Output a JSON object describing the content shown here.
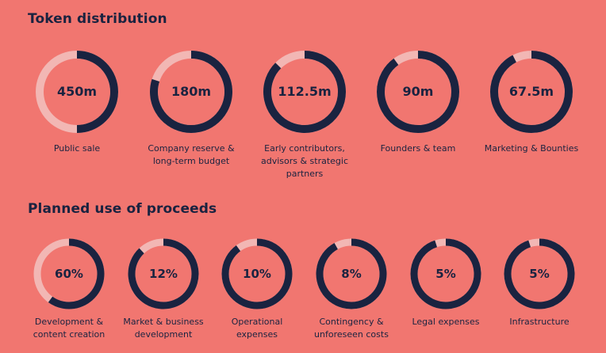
{
  "sections": [
    {
      "title": "Token distribution"
    },
    {
      "title": "Planned use of proceeds"
    }
  ],
  "colors": {
    "background": "#f17670",
    "fill": "#1a2340",
    "track": "#f2b7b4",
    "text": "#1a2340"
  },
  "chart_data": [
    {
      "type": "pie",
      "title": "Token distribution",
      "categories": [
        "Public sale",
        "Company reserve & long-term budget",
        "Early contributors, advisors & strategic partners",
        "Founders & team",
        "Marketing & Bounties"
      ],
      "labels": [
        "450m",
        "180m",
        "112.5m",
        "90m",
        "67.5m"
      ],
      "values": [
        450,
        180,
        112.5,
        90,
        67.5
      ],
      "fractions": [
        0.5,
        0.8,
        0.875,
        0.9,
        0.925
      ]
    },
    {
      "type": "pie",
      "title": "Planned use of proceeds",
      "categories": [
        "Development & content creation",
        "Market & business development",
        "Operational expenses",
        "Contingency & unforeseen costs",
        "Legal expenses",
        "Infrastructure"
      ],
      "labels": [
        "60%",
        "12%",
        "10%",
        "8%",
        "5%",
        "5%"
      ],
      "values": [
        60,
        12,
        10,
        8,
        5,
        5
      ],
      "fractions": [
        0.6,
        0.88,
        0.9,
        0.92,
        0.95,
        0.95
      ]
    }
  ]
}
